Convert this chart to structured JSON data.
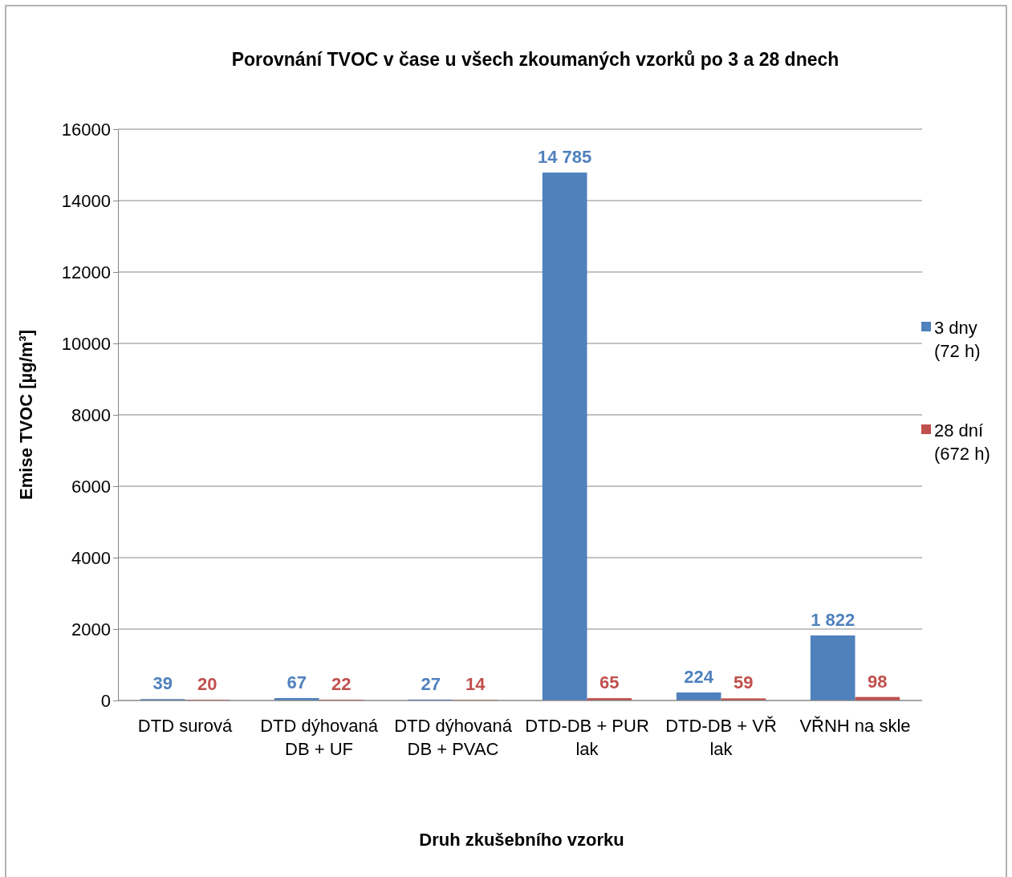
{
  "chart_data": {
    "type": "bar",
    "title": "Porovnání TVOC v čase u všech zkoumaných vzorků po 3 a 28 dnech",
    "xlabel": "Druh zkušebního vzorku",
    "ylabel": "Emise TVOC [µg/m³]",
    "categories": [
      "DTD surová",
      "DTD dýhovaná DB + UF",
      "DTD dýhovaná DB + PVAC",
      "DTD-DB + PUR lak",
      "DTD-DB + VŘ lak",
      "VŘNH na skle"
    ],
    "series": [
      {
        "name": "3 dny (72 h)",
        "color": "#4f81bd",
        "values": [
          39,
          67,
          27,
          14785,
          224,
          1822
        ],
        "value_labels": [
          "39",
          "67",
          "27",
          "14 785",
          "224",
          "1 822"
        ]
      },
      {
        "name": "28 dní (672 h)",
        "color": "#c0504d",
        "values": [
          20,
          22,
          14,
          65,
          59,
          98
        ],
        "value_labels": [
          "20",
          "22",
          "14",
          "65",
          "59",
          "98"
        ]
      }
    ],
    "ylim": [
      0,
      16000
    ],
    "yticks": [
      0,
      2000,
      4000,
      6000,
      8000,
      10000,
      12000,
      14000,
      16000
    ],
    "grid": "y",
    "legend": "right"
  }
}
